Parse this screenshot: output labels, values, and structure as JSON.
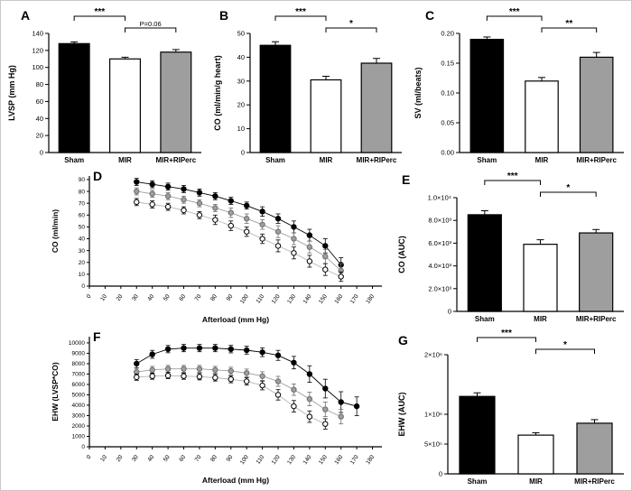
{
  "panels": {
    "a": {
      "label": "A"
    },
    "b": {
      "label": "B"
    },
    "c": {
      "label": "C"
    },
    "d": {
      "label": "D"
    },
    "e": {
      "label": "E"
    },
    "f": {
      "label": "F"
    },
    "g": {
      "label": "G"
    }
  },
  "groups": [
    "Sham",
    "MIR",
    "MIR+RIPerc"
  ],
  "group_colors": {
    "sham": "#000000",
    "mir": "#ffffff",
    "riperc": "#9e9e9e"
  },
  "chart_data": [
    {
      "id": "a",
      "type": "bar",
      "ylabel": "LVSP (mm Hg)",
      "ylim": [
        0,
        140
      ],
      "yticks": [
        0,
        20,
        40,
        60,
        80,
        100,
        120,
        140
      ],
      "categories": [
        "Sham",
        "MIR",
        "MIR+RIPerc"
      ],
      "values": [
        128,
        110,
        118
      ],
      "errors": [
        2,
        2,
        3
      ],
      "bar_colors": [
        "#000000",
        "#ffffff",
        "#9e9e9e"
      ],
      "brackets": [
        {
          "from": 0,
          "to": 1,
          "label": "***"
        },
        {
          "from": 1,
          "to": 2,
          "label": "P=0.06"
        }
      ]
    },
    {
      "id": "b",
      "type": "bar",
      "ylabel": "CO (ml/min/g heart)",
      "ylim": [
        0,
        50
      ],
      "yticks": [
        0,
        10,
        20,
        30,
        40,
        50
      ],
      "categories": [
        "Sham",
        "MIR",
        "MIR+RIPerc"
      ],
      "values": [
        45,
        30.5,
        37.5
      ],
      "errors": [
        1.5,
        1.5,
        2
      ],
      "bar_colors": [
        "#000000",
        "#ffffff",
        "#9e9e9e"
      ],
      "brackets": [
        {
          "from": 0,
          "to": 1,
          "label": "***"
        },
        {
          "from": 1,
          "to": 2,
          "label": "*"
        }
      ]
    },
    {
      "id": "c",
      "type": "bar",
      "ylabel": "SV (ml/beats)",
      "ylim": [
        0,
        0.2
      ],
      "yticks": [
        0,
        0.05,
        0.1,
        0.15,
        0.2
      ],
      "ytick_labels": [
        "0.00",
        "0.05",
        "0.10",
        "0.15",
        "0.20"
      ],
      "categories": [
        "Sham",
        "MIR",
        "MIR+RIPerc"
      ],
      "values": [
        0.19,
        0.12,
        0.16
      ],
      "errors": [
        0.004,
        0.006,
        0.008
      ],
      "bar_colors": [
        "#000000",
        "#ffffff",
        "#9e9e9e"
      ],
      "brackets": [
        {
          "from": 0,
          "to": 1,
          "label": "***"
        },
        {
          "from": 1,
          "to": 2,
          "label": "**"
        }
      ]
    },
    {
      "id": "d",
      "type": "line",
      "ylabel": "CO (ml/min)",
      "xlabel": "Afterload (mm Hg)",
      "ylim": [
        0,
        93
      ],
      "yticks": [
        0,
        10,
        20,
        30,
        40,
        50,
        60,
        70,
        80,
        90
      ],
      "xlim": [
        0,
        186
      ],
      "xticks": [
        0,
        10,
        20,
        30,
        40,
        50,
        60,
        70,
        80,
        90,
        100,
        110,
        120,
        130,
        140,
        150,
        160,
        170,
        180
      ],
      "series": [
        {
          "name": "Sham",
          "marker_fill": "#000000",
          "marker_stroke": "#000000",
          "line_color": "#000000",
          "x": [
            30,
            40,
            50,
            60,
            70,
            80,
            90,
            100,
            110,
            120,
            130,
            140,
            150,
            160
          ],
          "y": [
            88,
            86,
            84,
            82,
            79,
            76,
            72,
            68,
            63,
            57,
            50,
            43,
            34,
            18
          ],
          "err": [
            3,
            3,
            3,
            3,
            3,
            3,
            3,
            3,
            4,
            4,
            5,
            5,
            6,
            6
          ]
        },
        {
          "name": "MIR+RIPerc",
          "marker_fill": "#9e9e9e",
          "marker_stroke": "#6e6e6e",
          "line_color": "#9e9e9e",
          "x": [
            30,
            40,
            50,
            60,
            70,
            80,
            90,
            100,
            110,
            120,
            130,
            140,
            150,
            160
          ],
          "y": [
            80,
            78,
            76,
            73,
            70,
            66,
            62,
            57,
            52,
            46,
            40,
            33,
            25,
            13
          ],
          "err": [
            3,
            3,
            3,
            3,
            3,
            3,
            4,
            4,
            4,
            5,
            5,
            5,
            6,
            6
          ]
        },
        {
          "name": "MIR",
          "marker_fill": "#ffffff",
          "marker_stroke": "#000000",
          "line_color": "#b5b5b5",
          "x": [
            30,
            40,
            50,
            60,
            70,
            80,
            90,
            100,
            110,
            120,
            130,
            140,
            150,
            160
          ],
          "y": [
            71,
            69,
            67,
            64,
            60,
            56,
            51,
            46,
            40,
            34,
            28,
            21,
            14,
            8
          ],
          "err": [
            3,
            3,
            3,
            3,
            3,
            4,
            4,
            4,
            4,
            5,
            5,
            5,
            5,
            4
          ]
        }
      ]
    },
    {
      "id": "e",
      "type": "bar",
      "ylabel": "CO (AUC)",
      "ylim": [
        0,
        10000
      ],
      "yticks": [
        0,
        2000,
        4000,
        6000,
        8000,
        10000
      ],
      "ytick_labels": [
        "0",
        "2.0×10³",
        "4.0×10³",
        "6.0×10³",
        "8.0×10³",
        "1.0×10⁴"
      ],
      "categories": [
        "Sham",
        "MIR",
        "MIR+RIPerc"
      ],
      "values": [
        8500,
        5900,
        6900
      ],
      "errors": [
        350,
        400,
        300
      ],
      "bar_colors": [
        "#000000",
        "#ffffff",
        "#9e9e9e"
      ],
      "brackets": [
        {
          "from": 0,
          "to": 1,
          "label": "***"
        },
        {
          "from": 1,
          "to": 2,
          "label": "*"
        }
      ]
    },
    {
      "id": "f",
      "type": "line",
      "ylabel": "EHW (LVSP*CO)",
      "xlabel": "Afterload (mm Hg)",
      "ylim": [
        0,
        10600
      ],
      "yticks": [
        0,
        1000,
        2000,
        3000,
        4000,
        5000,
        6000,
        7000,
        8000,
        9000,
        10000
      ],
      "xlim": [
        0,
        186
      ],
      "xticks": [
        0,
        10,
        20,
        30,
        40,
        50,
        60,
        70,
        80,
        90,
        100,
        110,
        120,
        130,
        140,
        150,
        160,
        170,
        180
      ],
      "series": [
        {
          "name": "Sham",
          "marker_fill": "#000000",
          "marker_stroke": "#000000",
          "line_color": "#000000",
          "x": [
            30,
            40,
            50,
            60,
            70,
            80,
            90,
            100,
            110,
            120,
            130,
            140,
            150,
            160,
            170
          ],
          "y": [
            8000,
            8900,
            9400,
            9500,
            9500,
            9500,
            9400,
            9300,
            9100,
            8800,
            8100,
            7000,
            5600,
            4300,
            3900
          ],
          "err": [
            400,
            380,
            350,
            350,
            350,
            350,
            360,
            380,
            420,
            480,
            600,
            800,
            900,
            1000,
            900
          ]
        },
        {
          "name": "MIR+RIPerc",
          "marker_fill": "#9e9e9e",
          "marker_stroke": "#6e6e6e",
          "line_color": "#9e9e9e",
          "x": [
            30,
            40,
            50,
            60,
            70,
            80,
            90,
            100,
            110,
            120,
            130,
            140,
            150,
            160
          ],
          "y": [
            7200,
            7400,
            7500,
            7500,
            7500,
            7400,
            7300,
            7100,
            6800,
            6300,
            5500,
            4600,
            3600,
            2900
          ],
          "err": [
            350,
            340,
            330,
            330,
            330,
            340,
            360,
            380,
            420,
            480,
            550,
            650,
            700,
            700
          ]
        },
        {
          "name": "MIR",
          "marker_fill": "#ffffff",
          "marker_stroke": "#000000",
          "line_color": "#b5b5b5",
          "x": [
            30,
            40,
            50,
            60,
            70,
            80,
            90,
            100,
            110,
            120,
            130,
            140,
            150
          ],
          "y": [
            6700,
            6800,
            6850,
            6800,
            6750,
            6650,
            6500,
            6300,
            5900,
            5000,
            3900,
            2900,
            2200
          ],
          "err": [
            300,
            300,
            300,
            300,
            310,
            320,
            340,
            360,
            420,
            500,
            550,
            550,
            500
          ]
        }
      ]
    },
    {
      "id": "g",
      "type": "bar",
      "ylabel": "EHW (AUC)",
      "ylim": [
        0,
        2000000
      ],
      "yticks": [
        0,
        500000,
        1000000,
        2000000
      ],
      "ytick_labels": [
        "0",
        "5×10⁵",
        "1×10⁶",
        "2×10⁶"
      ],
      "categories": [
        "Sham",
        "MIR",
        "MIR+RIPerc"
      ],
      "values": [
        1300000,
        650000,
        850000
      ],
      "errors": [
        60000,
        40000,
        60000
      ],
      "bar_colors": [
        "#000000",
        "#ffffff",
        "#9e9e9e"
      ],
      "brackets": [
        {
          "from": 0,
          "to": 1,
          "label": "***"
        },
        {
          "from": 1,
          "to": 2,
          "label": "*"
        }
      ]
    }
  ]
}
